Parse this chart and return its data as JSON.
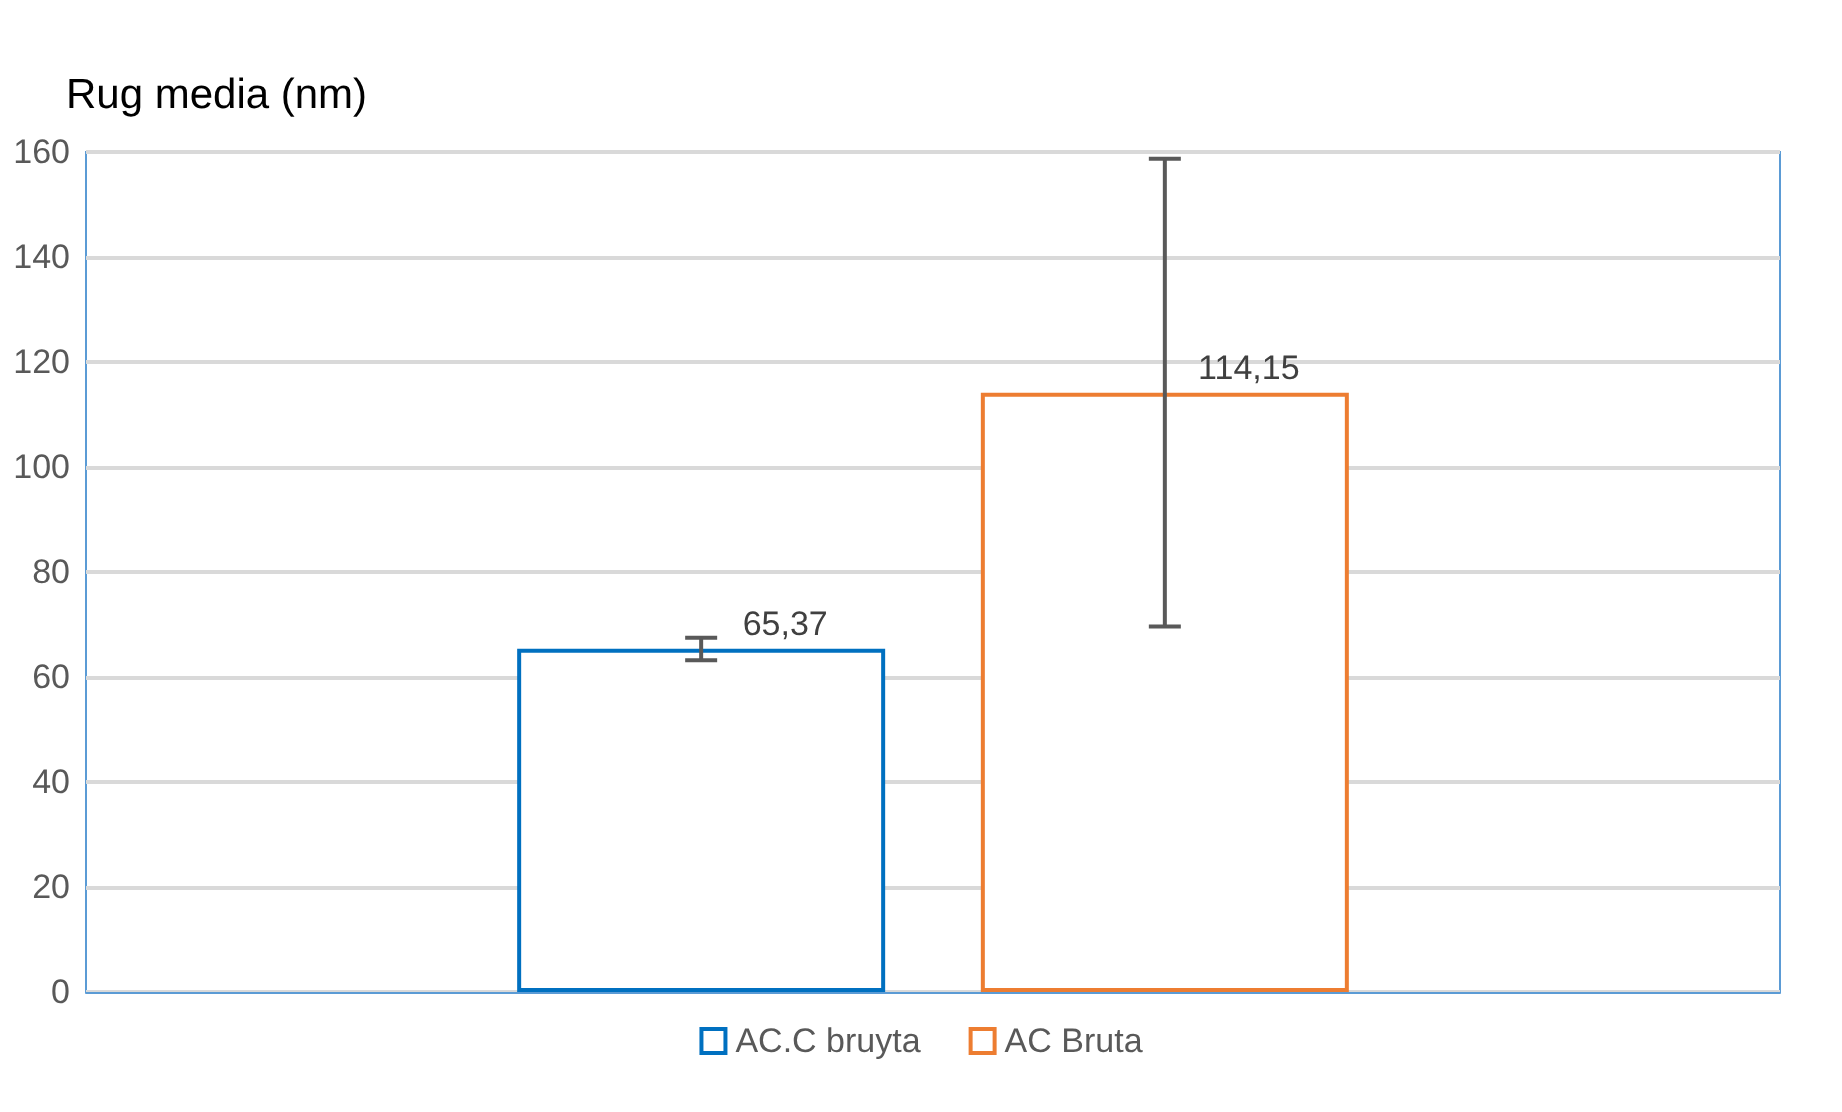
{
  "chart_data": {
    "type": "bar",
    "ylabel": "Rug media (nm)",
    "categories": [
      null
    ],
    "series": [
      {
        "name": "AC.C bruyta",
        "color": "#0070c0",
        "values": [
          65.37
        ],
        "errors": [
          [
            63.2,
            67.5
          ]
        ],
        "value_labels": [
          "65,37"
        ]
      },
      {
        "name": "AC Bruta",
        "color": "#ed7d31",
        "values": [
          114.15
        ],
        "errors": [
          [
            69.6,
            158.7
          ]
        ],
        "value_labels": [
          "114,15"
        ]
      }
    ],
    "ylim": [
      0,
      160
    ],
    "yticks": [
      0,
      20,
      40,
      60,
      80,
      100,
      120,
      140,
      160
    ],
    "grid": "y",
    "legend": "bottom"
  }
}
